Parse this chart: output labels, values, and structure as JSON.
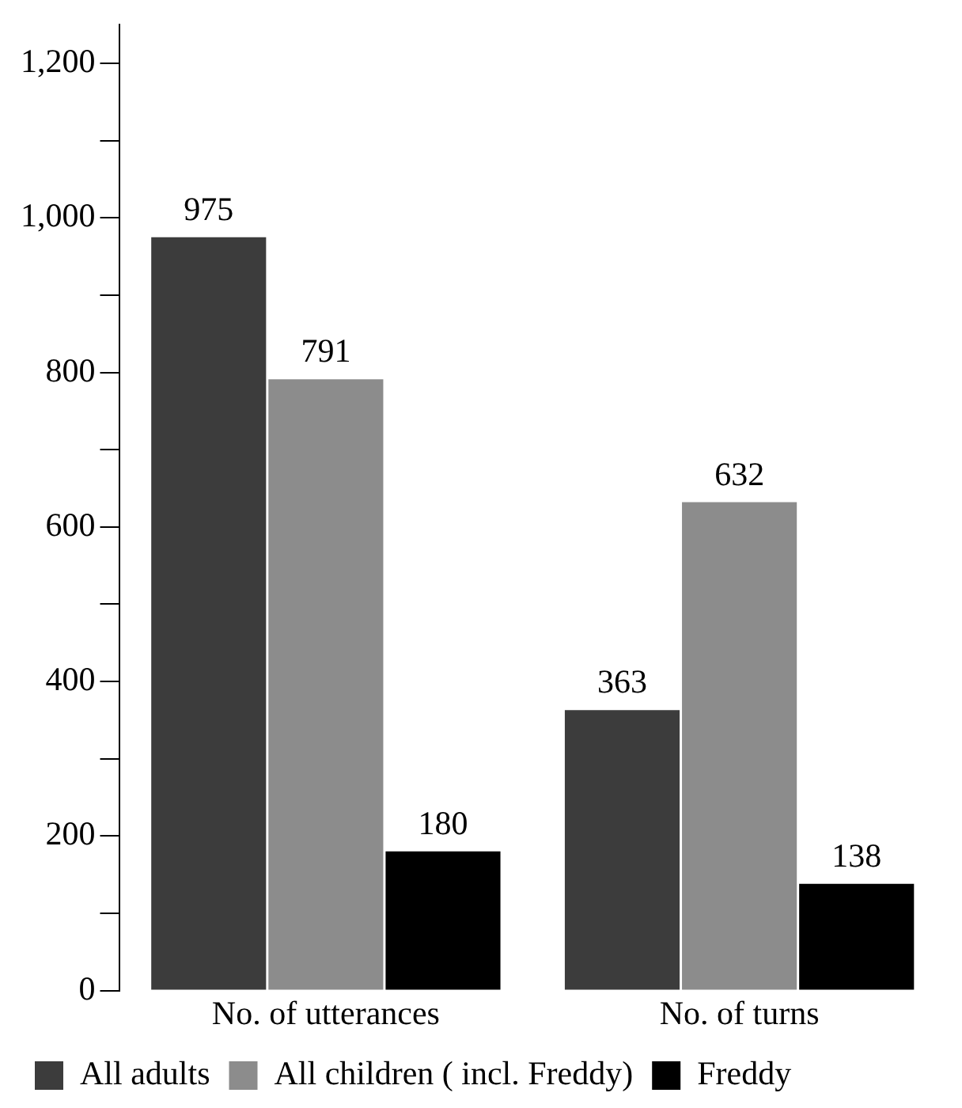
{
  "chart_data": {
    "type": "bar",
    "categories": [
      "No. of utterances",
      "No. of turns"
    ],
    "series": [
      {
        "name": "All adults",
        "color": "#3c3c3c",
        "values": [
          975,
          363
        ]
      },
      {
        "name": "All children ( incl. Freddy)",
        "color": "#8c8c8c",
        "values": [
          791,
          632
        ]
      },
      {
        "name": "Freddy",
        "color": "#000000",
        "values": [
          180,
          138
        ]
      }
    ],
    "ylim": [
      0,
      1250
    ],
    "yticks": [
      0,
      {
        "value": 100,
        "label": null
      },
      200,
      {
        "value": 300,
        "label": null
      },
      400,
      {
        "value": 500,
        "label": null
      },
      600,
      {
        "value": 700,
        "label": null
      },
      800,
      {
        "value": 900,
        "label": null
      },
      {
        "value": 1000,
        "label": "1,000"
      },
      {
        "value": 1100,
        "label": null
      },
      {
        "value": 1200,
        "label": "1,200"
      }
    ],
    "data_labels": true,
    "grid": false,
    "legend": "bottom left"
  }
}
